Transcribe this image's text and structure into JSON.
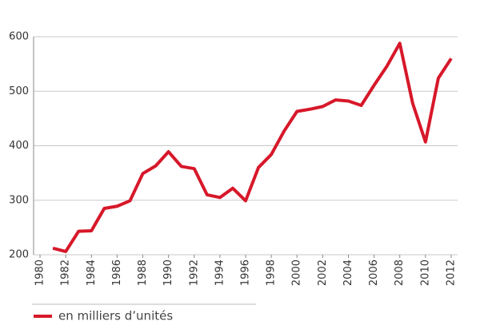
{
  "chart_data": {
    "type": "line",
    "x": [
      1981,
      1982,
      1983,
      1984,
      1985,
      1986,
      1987,
      1988,
      1989,
      1990,
      1991,
      1992,
      1993,
      1994,
      1995,
      1996,
      1997,
      1998,
      1999,
      2000,
      2001,
      2002,
      2003,
      2004,
      2005,
      2006,
      2007,
      2008,
      2009,
      2010,
      2011,
      2012
    ],
    "series": [
      {
        "name": "en milliers d’unités",
        "color": "#d7182a",
        "values": [
          212,
          206,
          243,
          244,
          285,
          289,
          299,
          349,
          363,
          389,
          362,
          358,
          310,
          305,
          322,
          299,
          360,
          384,
          427,
          463,
          467,
          472,
          484,
          482,
          474,
          511,
          546,
          588,
          478,
          407,
          524,
          560
        ]
      }
    ],
    "xlim": [
      1979.5,
      2012.5
    ],
    "xticks": [
      1980,
      1982,
      1984,
      1986,
      1988,
      1990,
      1992,
      1994,
      1996,
      1998,
      2000,
      2002,
      2004,
      2006,
      2008,
      2010,
      2012
    ],
    "ylim": [
      200,
      600
    ],
    "yticks": [
      200,
      300,
      400,
      500,
      600
    ],
    "grid": true
  }
}
